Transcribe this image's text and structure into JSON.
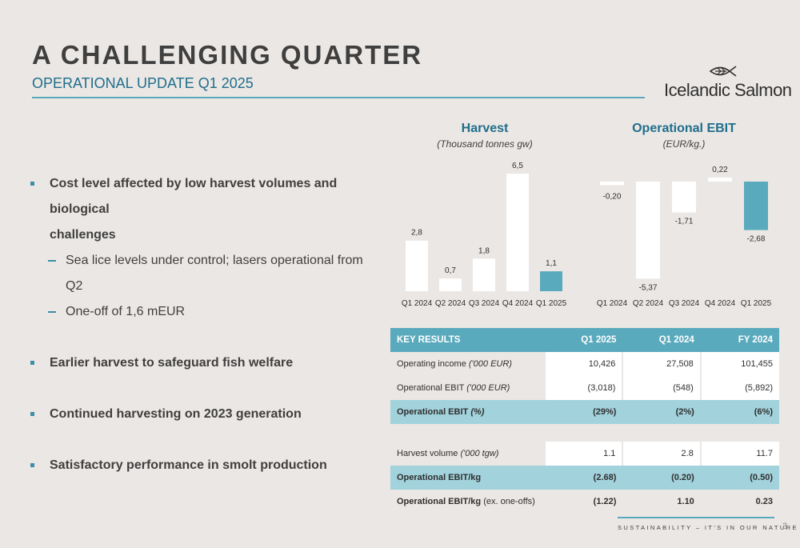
{
  "header": {
    "title": "A CHALLENGING QUARTER",
    "subtitle": "OPERATIONAL UPDATE Q1 2025"
  },
  "logo": {
    "name": "Icelandic Salmon",
    "icon": "fish-logo-icon"
  },
  "bullets": [
    {
      "text": "Cost level affected by low harvest volumes and biological",
      "text2": "challenges",
      "subs": [
        "Sea lice levels under control; lasers operational from Q2",
        "One-off of 1,6 mEUR"
      ]
    },
    {
      "text": "Earlier harvest to safeguard fish welfare"
    },
    {
      "text": "Continued harvesting on 2023 generation"
    },
    {
      "text": "Satisfactory performance in smolt production"
    }
  ],
  "chart_data": [
    {
      "type": "bar",
      "title": "Harvest",
      "subtitle": "(Thousand tonnes gw)",
      "categories": [
        "Q1 2024",
        "Q2 2024",
        "Q3 2024",
        "Q4 2024",
        "Q1 2025"
      ],
      "values": [
        2.8,
        0.7,
        1.8,
        6.5,
        1.1
      ],
      "labels": [
        "2,8",
        "0,7",
        "1,8",
        "6,5",
        "1,1"
      ],
      "highlight_index": 4,
      "colors": {
        "bar": "#ffffff",
        "highlight": "#5aaabd"
      }
    },
    {
      "type": "bar",
      "title": "Operational EBIT",
      "subtitle": "(EUR/kg.)",
      "categories": [
        "Q1 2024",
        "Q2 2024",
        "Q3 2024",
        "Q4 2024",
        "Q1 2025"
      ],
      "values": [
        -0.2,
        -5.37,
        -1.71,
        0.22,
        -2.68
      ],
      "labels": [
        "-0,20",
        "-5,37",
        "-1,71",
        "0,22",
        "-2,68"
      ],
      "highlight_index": 4,
      "colors": {
        "bar": "#ffffff",
        "highlight": "#5aaabd"
      }
    }
  ],
  "table": {
    "headers": [
      "KEY RESULTS",
      "Q1 2025",
      "Q1 2024",
      "FY 2024"
    ],
    "rows": [
      {
        "label": "Operating income",
        "unit": "('000 EUR)",
        "values": [
          "10,426",
          "27,508",
          "101,455"
        ],
        "style": "plain"
      },
      {
        "label": "Operational EBIT",
        "unit": "('000 EUR)",
        "values": [
          "(3,018)",
          "(548)",
          "(5,892)"
        ],
        "style": "plain"
      },
      {
        "label": "Operational EBIT",
        "unit": "(%)",
        "values": [
          "(29%)",
          "(2%)",
          "(6%)"
        ],
        "style": "hl"
      },
      {
        "label": "Harvest volume",
        "unit": "('000 tgw)",
        "values": [
          "1.1",
          "2.8",
          "11.7"
        ],
        "style": "plain"
      },
      {
        "label": "Operational EBIT/kg",
        "unit": "",
        "values": [
          "(2.68)",
          "(0.20)",
          "(0.50)"
        ],
        "style": "hl"
      },
      {
        "label": "Operational EBIT/kg",
        "unit": "(ex. one-offs)",
        "values": [
          "(1.22)",
          "1.10",
          "0.23"
        ],
        "style": "bold"
      }
    ]
  },
  "footer": {
    "tagline": "SUSTAINABILITY – IT'S IN OUR NATURE",
    "page": "3"
  },
  "colors": {
    "accent": "#5aaabd",
    "title": "#1f6e8c",
    "highlight_row": "#a2d2dc"
  }
}
